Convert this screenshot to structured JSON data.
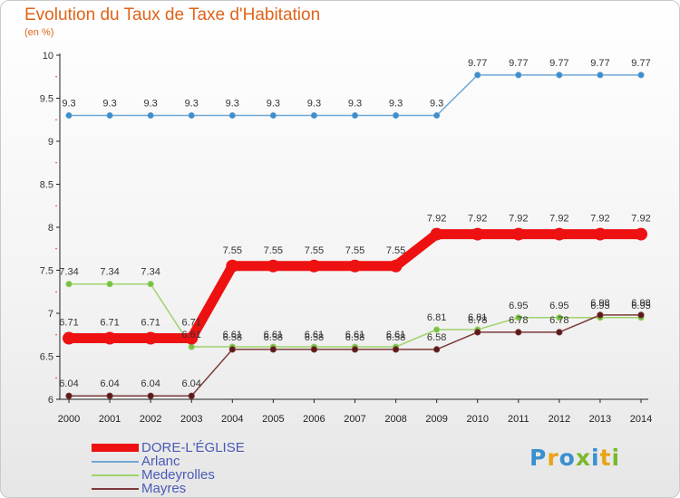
{
  "title": "Evolution du Taux de Taxe d'Habitation",
  "subtitle": "(en %)",
  "logo": {
    "text": "Proxiti",
    "colors": [
      "#3a8fd0",
      "#e8a317",
      "#3a8fd0",
      "#7cb82f",
      "#3a8fd0",
      "#e8a317",
      "#7cb82f"
    ]
  },
  "chart_data": {
    "type": "line",
    "x": [
      "2000",
      "2001",
      "2002",
      "2003",
      "2004",
      "2005",
      "2006",
      "2007",
      "2008",
      "2009",
      "2010",
      "2011",
      "2012",
      "2013",
      "2014"
    ],
    "ylim": [
      6,
      10
    ],
    "yticks": [
      "6",
      "6.5",
      "7",
      "7.5",
      "8",
      "8.5",
      "9",
      "9.5",
      "10"
    ],
    "grid": false,
    "legend_position": "bottom-left",
    "series": [
      {
        "name": "Arlanc",
        "color": "#6fa8d6",
        "marker": "#3c8dcc",
        "values": [
          9.3,
          9.3,
          9.3,
          9.3,
          9.3,
          9.3,
          9.3,
          9.3,
          9.3,
          9.3,
          9.77,
          9.77,
          9.77,
          9.77,
          9.77
        ]
      },
      {
        "name": "Medeyrolles",
        "color": "#9ed36a",
        "marker": "#75c244",
        "values": [
          7.34,
          7.34,
          7.34,
          6.61,
          6.61,
          6.61,
          6.61,
          6.61,
          6.61,
          6.81,
          6.81,
          6.95,
          6.95,
          6.95,
          6.95
        ]
      },
      {
        "name": "Mayres",
        "color": "#7d3a3a",
        "marker": "#5a1a1a",
        "values": [
          6.04,
          6.04,
          6.04,
          6.04,
          6.58,
          6.58,
          6.58,
          6.58,
          6.58,
          6.58,
          6.78,
          6.78,
          6.78,
          6.98,
          6.98
        ]
      },
      {
        "name": "DORE-L'ÉGLISE",
        "color": "#ee1111",
        "marker": "#ee1111",
        "values": [
          6.71,
          6.71,
          6.71,
          6.71,
          7.55,
          7.55,
          7.55,
          7.55,
          7.55,
          7.92,
          7.92,
          7.92,
          7.92,
          7.92,
          7.92
        ]
      }
    ],
    "legend": [
      "DORE-L'ÉGLISE",
      "Arlanc",
      "Medeyrolles",
      "Mayres"
    ]
  }
}
